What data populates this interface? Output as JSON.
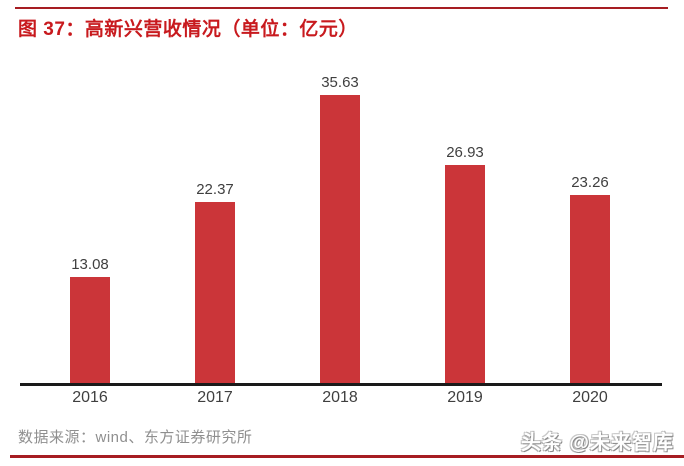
{
  "figure": {
    "title": "图 37：高新兴营收情况（单位：亿元）",
    "source_note": "数据来源：wind、东方证券研究所",
    "watermark": "头条 @未来智库"
  },
  "colors": {
    "bar": "#cb3539",
    "title": "#c81a1e",
    "rule": "#a61d22",
    "axis": "#1a1a1a",
    "value_label": "#3f3f3f",
    "source_text": "#8f8f8f"
  },
  "chart_data": {
    "type": "bar",
    "title": "图 37：高新兴营收情况（单位：亿元）",
    "categories": [
      "2016",
      "2017",
      "2018",
      "2019",
      "2020"
    ],
    "values": [
      13.08,
      22.37,
      35.63,
      26.93,
      23.26
    ],
    "value_labels": [
      "13.08",
      "22.37",
      "35.63",
      "26.93",
      "23.26"
    ],
    "xlabel": "",
    "ylabel": "",
    "ylim": [
      0,
      40
    ],
    "grid": false,
    "legend": false,
    "unit": "亿元"
  }
}
